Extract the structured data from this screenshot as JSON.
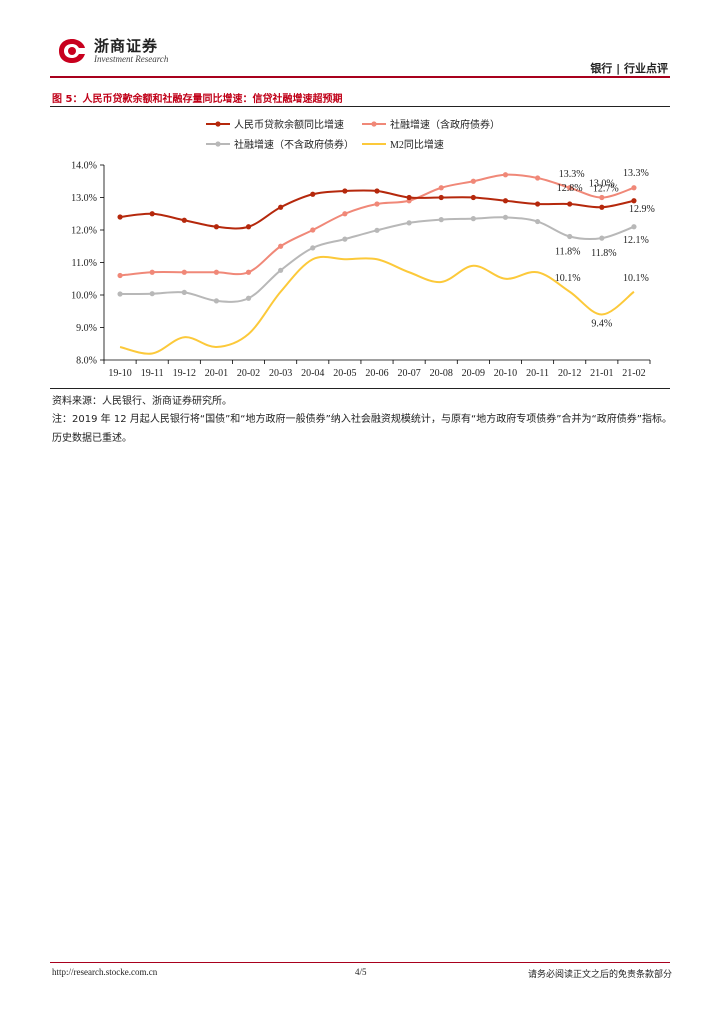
{
  "header": {
    "logo_cn": "浙商证券",
    "logo_en": "Investment Research",
    "section": "银行 | 行业点评"
  },
  "figure": {
    "title": "图 5：人民币贷款余额和社融存量同比增速：信贷社融增速超预期"
  },
  "source": "资料来源：人民银行、浙商证券研究所。",
  "note": "注：2019 年 12 月起人民银行将“国债”和“地方政府一般债券”纳入社会融资规模统计，与原有“地方政府专项债券”合并为“政府债券”指标。历史数据已重述。",
  "footer": {
    "url": "http://research.stocke.com.cn",
    "page": "4/5",
    "disclaimer": "请务必阅读正文之后的免责条款部分"
  },
  "colors": {
    "brand": "#a8001d",
    "title_red": "#c00018"
  },
  "chart_data": {
    "type": "line",
    "categories": [
      "19-10",
      "19-11",
      "19-12",
      "20-01",
      "20-02",
      "20-03",
      "20-04",
      "20-05",
      "20-06",
      "20-07",
      "20-08",
      "20-09",
      "20-10",
      "20-11",
      "20-12",
      "21-01",
      "21-02"
    ],
    "ylim": [
      8.0,
      14.0
    ],
    "yticks": [
      "8.0%",
      "9.0%",
      "10.0%",
      "11.0%",
      "12.0%",
      "13.0%",
      "14.0%"
    ],
    "grid": false,
    "legend": "top",
    "series": [
      {
        "name": "人民币贷款余额同比增速",
        "color": "#b5280c",
        "marker": true,
        "values": [
          12.4,
          12.5,
          12.3,
          12.1,
          12.1,
          12.7,
          13.1,
          13.2,
          13.2,
          13.0,
          13.0,
          13.0,
          12.9,
          12.8,
          12.8,
          12.7,
          12.9
        ],
        "labels": {
          "14": "12.8%",
          "15": "12.7%",
          "16": "12.9%"
        }
      },
      {
        "name": "社融增速（含政府债券）",
        "color": "#f08878",
        "marker": true,
        "values": [
          10.6,
          10.7,
          10.7,
          10.7,
          10.7,
          11.5,
          12.0,
          12.5,
          12.8,
          12.9,
          13.3,
          13.5,
          13.7,
          13.6,
          13.3,
          13.0,
          13.3
        ],
        "labels": {
          "14": "13.3%",
          "15": "13.0%",
          "16": "13.3%"
        }
      },
      {
        "name": "社融增速（不含政府债券）",
        "color": "#b8b8b8",
        "marker": true,
        "values": [
          10.03,
          10.04,
          10.08,
          9.82,
          9.9,
          10.76,
          11.45,
          11.72,
          11.99,
          12.22,
          12.32,
          12.35,
          12.39,
          12.26,
          11.8,
          11.75,
          12.1
        ],
        "labels": {
          "14": "11.8%",
          "15": "11.8%",
          "16": "12.1%"
        }
      },
      {
        "name": "M2同比增速",
        "color": "#fcc93a",
        "marker": false,
        "values": [
          8.4,
          8.2,
          8.7,
          8.4,
          8.8,
          10.1,
          11.1,
          11.1,
          11.1,
          10.7,
          10.4,
          10.9,
          10.5,
          10.7,
          10.1,
          9.4,
          10.1
        ],
        "labels": {
          "14": "10.1%",
          "15": "9.4%",
          "16": "10.1%"
        }
      }
    ]
  }
}
